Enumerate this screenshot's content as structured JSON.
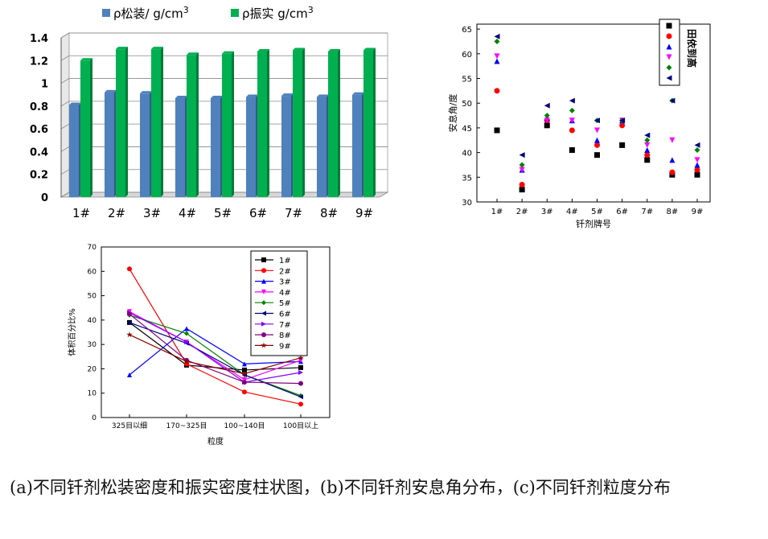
{
  "caption": "(a)不同钎剂松装密度和振实密度柱状图，(b)不同钎剂安息角分布，(c)不同钎剂粒度分布",
  "chart_data": [
    {
      "type": "bar",
      "categories": [
        "1#",
        "2#",
        "3#",
        "4#",
        "5#",
        "6#",
        "7#",
        "8#",
        "9#"
      ],
      "series": [
        {
          "name": "ρ松装/ g/cm3",
          "color": "#4f81bd",
          "values": [
            0.81,
            0.92,
            0.91,
            0.87,
            0.87,
            0.88,
            0.89,
            0.88,
            0.9
          ]
        },
        {
          "name": "ρ振实 g/cm3",
          "color": "#00b050",
          "values": [
            1.2,
            1.3,
            1.3,
            1.25,
            1.26,
            1.28,
            1.29,
            1.28,
            1.29
          ]
        }
      ],
      "yticks": [
        "0",
        "0.2",
        "0.4",
        "0.6",
        "0.8",
        "1",
        "1.2",
        "1.4"
      ],
      "ylim": [
        0,
        1.4
      ],
      "grid": true,
      "legend_position": "top"
    },
    {
      "type": "scatter",
      "categories": [
        "1#",
        "2#",
        "3#",
        "4#",
        "5#",
        "6#",
        "7#",
        "8#",
        "9#"
      ],
      "xlabel": "钎剂牌号",
      "ylabel": "安息角/度",
      "yticks": [
        "30",
        "35",
        "40",
        "45",
        "50",
        "55",
        "60",
        "65"
      ],
      "ylim": [
        30,
        66
      ],
      "legend_title": "田依到高",
      "legend_position": "top-right",
      "series": [
        {
          "marker": "square",
          "color": "#000000",
          "values": [
            44.5,
            32.5,
            45.5,
            40.5,
            39.5,
            41.5,
            38.5,
            35.5,
            35.5
          ]
        },
        {
          "marker": "circle",
          "color": "#ff0000",
          "values": [
            52.5,
            33.5,
            46.5,
            44.5,
            41.5,
            45.5,
            39.5,
            36.0,
            36.5
          ]
        },
        {
          "marker": "triangle-up",
          "color": "#0000ff",
          "values": [
            58.5,
            36.5,
            47.0,
            46.5,
            42.5,
            46.5,
            40.5,
            38.5,
            37.5
          ]
        },
        {
          "marker": "triangle-down",
          "color": "#ff00ff",
          "values": [
            59.5,
            36.5,
            46.5,
            46.5,
            44.5,
            46.5,
            41.5,
            42.5,
            38.5
          ]
        },
        {
          "marker": "diamond",
          "color": "#008000",
          "values": [
            62.5,
            37.5,
            47.5,
            48.5,
            46.5,
            46.5,
            42.5,
            50.5,
            40.5
          ]
        },
        {
          "marker": "triangle-left",
          "color": "#000080",
          "values": [
            63.5,
            39.5,
            49.5,
            50.5,
            46.5,
            46.5,
            43.5,
            50.5,
            41.5
          ]
        }
      ]
    },
    {
      "type": "line",
      "x": [
        "325目以细",
        "170~325目",
        "100~140目",
        "100目以上"
      ],
      "xlabel": "粒度",
      "ylabel": "体积百分比%",
      "yticks": [
        "0",
        "10",
        "20",
        "30",
        "40",
        "50",
        "60",
        "70"
      ],
      "ylim": [
        0,
        70
      ],
      "legend_position": "top-right",
      "series": [
        {
          "name": "1#",
          "color": "#000000",
          "marker": "square",
          "values": [
            39,
            21.5,
            19.5,
            20.5
          ]
        },
        {
          "name": "2#",
          "color": "#ff0000",
          "marker": "circle",
          "values": [
            61,
            22,
            10.5,
            5.5
          ]
        },
        {
          "name": "3#",
          "color": "#0000ff",
          "marker": "triangle-up",
          "values": [
            17.5,
            36.5,
            22,
            23
          ]
        },
        {
          "name": "4#",
          "color": "#ff00ff",
          "marker": "triangle-down",
          "values": [
            43.5,
            31,
            15.5,
            23.5
          ]
        },
        {
          "name": "5#",
          "color": "#008000",
          "marker": "diamond",
          "values": [
            42,
            34.5,
            17.5,
            9
          ]
        },
        {
          "name": "6#",
          "color": "#000080",
          "marker": "triangle-left",
          "values": [
            39,
            30.5,
            17.5,
            8.5
          ]
        },
        {
          "name": "7#",
          "color": "#8000ff",
          "marker": "triangle-right",
          "values": [
            43,
            31,
            14.5,
            18.5
          ]
        },
        {
          "name": "8#",
          "color": "#800080",
          "marker": "circle",
          "values": [
            42.5,
            23.5,
            14.5,
            14
          ]
        },
        {
          "name": "9#",
          "color": "#8b0000",
          "marker": "star",
          "values": [
            34,
            23,
            18,
            24.5
          ]
        }
      ]
    }
  ]
}
